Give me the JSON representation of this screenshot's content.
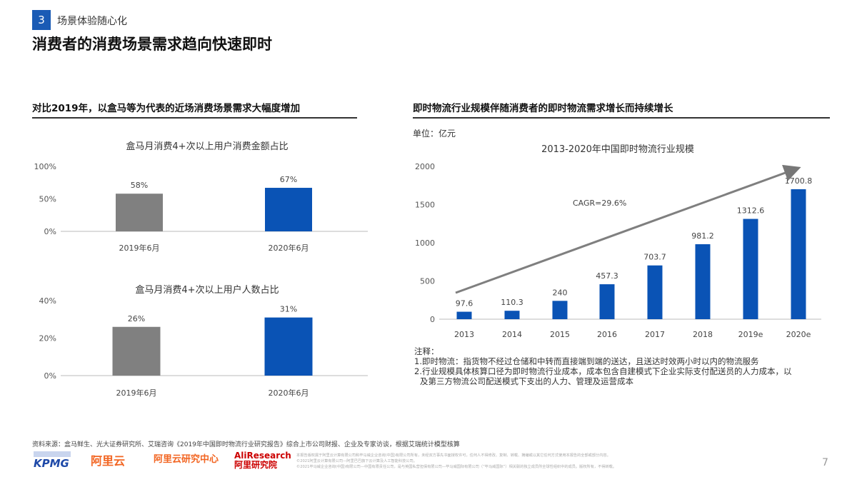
{
  "header": {
    "section_number": "3",
    "section_name": "场景体验随心化",
    "title": "消费者的消费场景需求趋向快速即时"
  },
  "left": {
    "subtitle": "对比2019年，以盒马等为代表的近场消费场景需求大幅度增加"
  },
  "right": {
    "subtitle": "即时物流行业规模伴随消费者的即时物流需求增长而持续增长",
    "unit": "单位：亿元"
  },
  "chart_data": [
    {
      "type": "bar",
      "title": "盒马月消费4+次以上用户消费金额占比",
      "categories": [
        "2019年6月",
        "2020年6月"
      ],
      "values": [
        58,
        67
      ],
      "data_labels": [
        "58%",
        "67%"
      ],
      "yticks": [
        "0%",
        "50%",
        "100%"
      ],
      "ylim": [
        0,
        100
      ],
      "colors": [
        "#808080",
        "#0a53b5"
      ],
      "grid": false
    },
    {
      "type": "bar",
      "title": "盒马月消费4+次以上用户人数占比",
      "categories": [
        "2019年6月",
        "2020年6月"
      ],
      "values": [
        26,
        31
      ],
      "data_labels": [
        "26%",
        "31%"
      ],
      "yticks": [
        "0%",
        "20%",
        "40%"
      ],
      "ylim": [
        0,
        40
      ],
      "colors": [
        "#808080",
        "#0a53b5"
      ],
      "grid": false
    },
    {
      "type": "bar",
      "title": "2013-2020年中国即时物流行业规模",
      "categories": [
        "2013",
        "2014",
        "2015",
        "2016",
        "2017",
        "2018",
        "2019e",
        "2020e"
      ],
      "values": [
        97.6,
        110.3,
        240,
        457.3,
        703.7,
        981.2,
        1312.6,
        1700.8
      ],
      "data_labels": [
        "97.6",
        "110.3",
        "240",
        "457.3",
        "703.7",
        "981.2",
        "1312.6",
        "1700.8"
      ],
      "yticks": [
        "0",
        "500",
        "1000",
        "1500",
        "2000"
      ],
      "ylim": [
        0,
        2000
      ],
      "color": "#0a53b5",
      "annotation": "CAGR=29.6%",
      "grid": false
    }
  ],
  "notes": {
    "title": "注释：",
    "items": [
      "1.即时物流：指货物不经过仓储和中转而直接端到端的送达，且送达时效两小时以内的物流服务",
      "2.行业规模具体核算口径为即时物流行业成本，成本包含自建模式下企业实际支付配送员的人力成本，以",
      "及第三方物流公司配送模式下支出的人力、管理及运营成本"
    ]
  },
  "footer": {
    "source": "资料来源：盒马鲜生、光大证券研究所、艾瑞咨询《2019年中国即时物流行业研究报告》综合上市公司财报、企业及专家访谈，根据艾瑞统计模型核算",
    "logos": [
      "KPMG",
      "阿里云",
      "阿里云研究中心",
      "AliResearch 阿里研究院"
    ],
    "fine_print": [
      "本报告版权属于阿里云计算有限公司和毕马威企业咨询(中国)有限公司所有，未经双方事先书面授权许可，任何人不得修改、复制、转载、摘编或以其它任何方式使用本报告的全部或部分内容。",
      "©2021阿里云计算有限公司—阿里巴巴旗下云计算及人工智能科技公司。",
      "©2021毕马威企业咨询(中国)有限公司—中国有限责任公司，是与英国私营担保有限公司—毕马威国际有限公司（“毕马威国际”）相关联的独立成员所全球性组织中的成员。版权所有，不得转载。"
    ],
    "page": "7"
  }
}
